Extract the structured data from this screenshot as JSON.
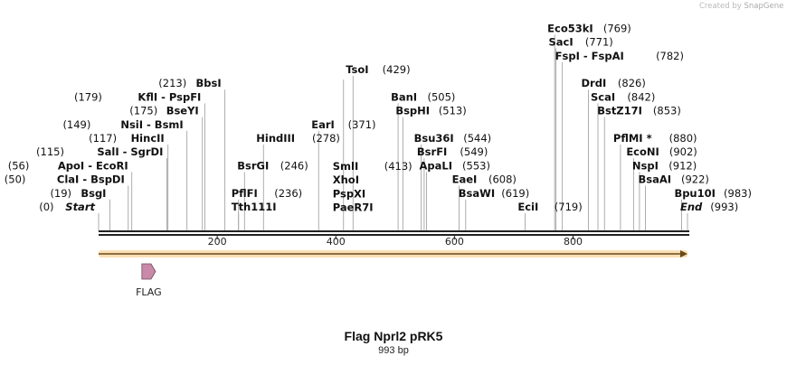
{
  "credit": {
    "prefix": "Created by",
    "brand": "SnapGene"
  },
  "map": {
    "name": "Flag Nprl2 pRK5",
    "length_text": "993 bp",
    "length_bp": 993,
    "feature_label": "FLAG",
    "feature": {
      "name": "FLAG",
      "start": 73,
      "end": 96
    },
    "orf": {
      "start": 1,
      "end": 993
    },
    "ticks": [
      200,
      400,
      600,
      800
    ],
    "colors": {
      "orf_fill": "#f5c47a",
      "orf_line": "#f0a020",
      "feature": "#c88aa8",
      "backbone": "#222222"
    }
  },
  "sites": [
    {
      "pos": 0,
      "names": [
        "Start"
      ],
      "num": "(0)",
      "italic": true,
      "row": 0,
      "side": "left"
    },
    {
      "pos": 19,
      "names": [
        "BsgI"
      ],
      "num": "(19)",
      "row": 1,
      "side": "left"
    },
    {
      "pos": 50,
      "names": [
        "ClaI",
        "BspDI"
      ],
      "num": "(50)",
      "row": 2,
      "side": "left"
    },
    {
      "pos": 56,
      "names": [
        "ApoI",
        "EcoRI"
      ],
      "num": "(56)",
      "row": 3,
      "side": "left"
    },
    {
      "pos": 115,
      "names": [
        "SalI",
        "SgrDI"
      ],
      "num": "(115)",
      "row": 4,
      "side": "left"
    },
    {
      "pos": 117,
      "names": [
        "HincII"
      ],
      "num": "(117)",
      "row": 5,
      "side": "left"
    },
    {
      "pos": 149,
      "names": [
        "NsiI",
        "BsmI"
      ],
      "num": "(149)",
      "row": 6,
      "side": "left"
    },
    {
      "pos": 175,
      "names": [
        "BseYI"
      ],
      "num": "(175)",
      "row": 7,
      "side": "left"
    },
    {
      "pos": 179,
      "names": [
        "KflI",
        "PspFI"
      ],
      "num": "(179)",
      "row": 8,
      "side": "left"
    },
    {
      "pos": 213,
      "names": [
        "BbsI"
      ],
      "num": "(213)",
      "row": 9,
      "side": "left"
    },
    {
      "pos": 236,
      "names": [
        "Tth111I"
      ],
      "num": "",
      "row": 0,
      "side": "right"
    },
    {
      "pos": 236,
      "names": [
        "PflFI"
      ],
      "num": "(236)",
      "row": 1,
      "side": "right"
    },
    {
      "pos": 246,
      "names": [
        "BsrGI"
      ],
      "num": "(246)",
      "row": 3,
      "side": "right"
    },
    {
      "pos": 278,
      "names": [
        "HindIII"
      ],
      "num": "(278)",
      "row": 5,
      "side": "right"
    },
    {
      "pos": 371,
      "names": [
        "EarI"
      ],
      "num": "(371)",
      "row": 6,
      "side": "right"
    },
    {
      "pos": 413,
      "names": [
        "SmlI",
        "XhoI",
        "PspXI",
        "PaeR7I"
      ],
      "num": "(413)",
      "row": 0,
      "side": "stack"
    },
    {
      "pos": 429,
      "names": [
        "TsoI"
      ],
      "num": "(429)",
      "row": 10,
      "side": "right"
    },
    {
      "pos": 505,
      "names": [
        "BanI"
      ],
      "num": "(505)",
      "row": 8,
      "side": "right"
    },
    {
      "pos": 513,
      "names": [
        "BspHI"
      ],
      "num": "(513)",
      "row": 7,
      "side": "right"
    },
    {
      "pos": 544,
      "names": [
        "Bsu36I"
      ],
      "num": "(544)",
      "row": 5,
      "side": "right"
    },
    {
      "pos": 549,
      "names": [
        "BsrFI"
      ],
      "num": "(549)",
      "row": 4,
      "side": "right"
    },
    {
      "pos": 553,
      "names": [
        "ApaLI"
      ],
      "num": "(553)",
      "row": 3,
      "side": "right"
    },
    {
      "pos": 608,
      "names": [
        "EaeI"
      ],
      "num": "(608)",
      "row": 2,
      "side": "right"
    },
    {
      "pos": 619,
      "names": [
        "BsaWI"
      ],
      "num": "(619)",
      "row": 1,
      "side": "right"
    },
    {
      "pos": 719,
      "names": [
        "EciI"
      ],
      "num": "(719)",
      "row": 0,
      "side": "right"
    },
    {
      "pos": 769,
      "names": [
        "Eco53kI"
      ],
      "num": "(769)",
      "row": 13,
      "side": "right"
    },
    {
      "pos": 771,
      "names": [
        "SacI"
      ],
      "num": "(771)",
      "row": 12,
      "side": "right"
    },
    {
      "pos": 782,
      "names": [
        "FspI",
        "FspAI"
      ],
      "num": "(782)",
      "row": 11,
      "side": "right"
    },
    {
      "pos": 826,
      "names": [
        "DrdI"
      ],
      "num": "(826)",
      "row": 9,
      "side": "right"
    },
    {
      "pos": 842,
      "names": [
        "ScaI"
      ],
      "num": "(842)",
      "row": 8,
      "side": "right"
    },
    {
      "pos": 853,
      "names": [
        "BstZ17I"
      ],
      "num": "(853)",
      "row": 7,
      "side": "right"
    },
    {
      "pos": 880,
      "names": [
        "PflMI *"
      ],
      "num": "(880)",
      "row": 5,
      "side": "right"
    },
    {
      "pos": 902,
      "names": [
        "EcoNI"
      ],
      "num": "(902)",
      "row": 4,
      "side": "right"
    },
    {
      "pos": 912,
      "names": [
        "NspI"
      ],
      "num": "(912)",
      "row": 3,
      "side": "right"
    },
    {
      "pos": 922,
      "names": [
        "BsaAI"
      ],
      "num": "(922)",
      "row": 2,
      "side": "right"
    },
    {
      "pos": 983,
      "names": [
        "Bpu10I"
      ],
      "num": "(983)",
      "row": 1,
      "side": "right"
    },
    {
      "pos": 993,
      "names": [
        "End"
      ],
      "num": "(993)",
      "italic": true,
      "row": 0,
      "side": "right"
    }
  ]
}
